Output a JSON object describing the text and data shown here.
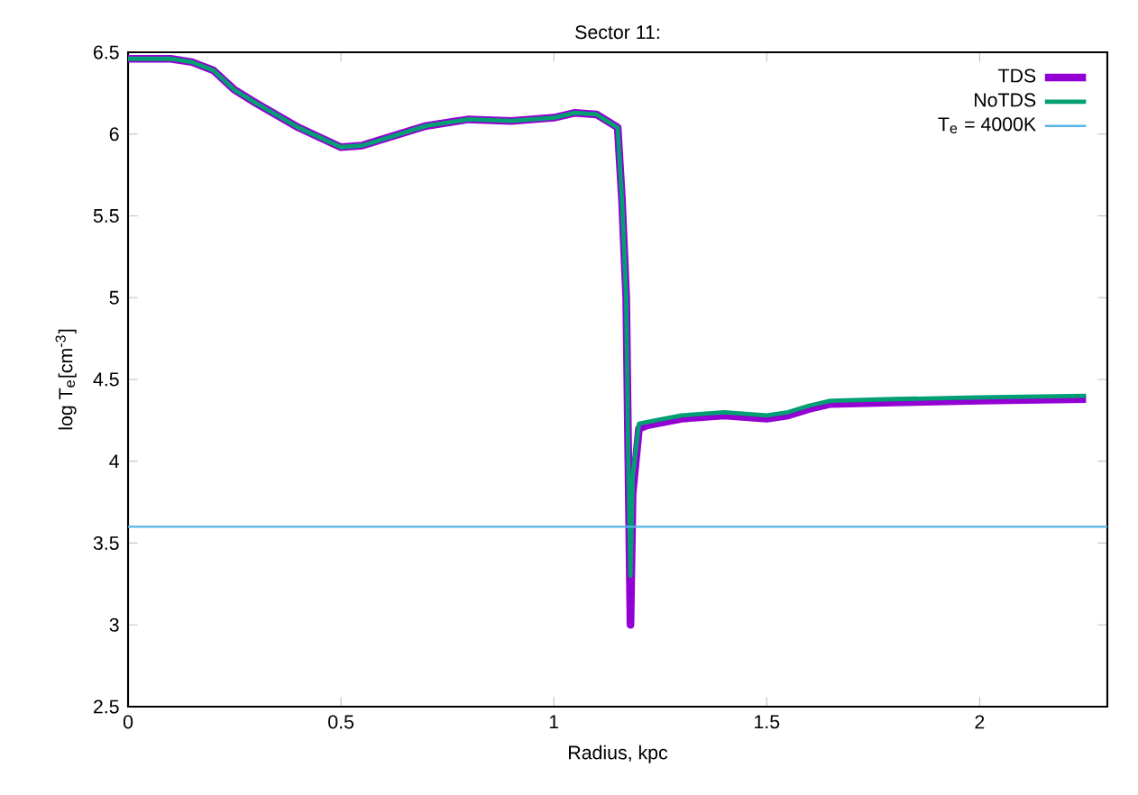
{
  "chart_data": {
    "type": "line",
    "title": "Sector 11:",
    "xlabel": "Radius, kpc",
    "ylabel": "log T$_{e}$[cm$^{-3}$]",
    "xlim": [
      0,
      2.3
    ],
    "ylim": [
      2.5,
      6.5
    ],
    "xticks": [
      0,
      0.5,
      1,
      1.5,
      2
    ],
    "yticks": [
      2.5,
      3,
      3.5,
      4,
      4.5,
      5,
      5.5,
      6,
      6.5
    ],
    "grid": false,
    "legend": "top right",
    "marker": "none",
    "line_style": "solid",
    "series": [
      {
        "name": "TDS",
        "color": "#9400d3",
        "x": [
          0,
          0.1,
          0.15,
          0.2,
          0.25,
          0.3,
          0.4,
          0.5,
          0.55,
          0.6,
          0.7,
          0.8,
          0.9,
          1.0,
          1.05,
          1.1,
          1.15,
          1.16,
          1.17,
          1.175,
          1.18,
          1.185,
          1.2,
          1.22,
          1.3,
          1.4,
          1.5,
          1.55,
          1.6,
          1.65,
          1.8,
          2.0,
          2.25
        ],
        "values": [
          6.46,
          6.46,
          6.44,
          6.39,
          6.27,
          6.19,
          6.04,
          5.92,
          5.93,
          5.97,
          6.05,
          6.09,
          6.08,
          6.1,
          6.13,
          6.12,
          6.04,
          5.6,
          5.0,
          4.0,
          3.0,
          3.8,
          4.2,
          4.22,
          4.26,
          4.28,
          4.26,
          4.28,
          4.32,
          4.35,
          4.36,
          4.37,
          4.38
        ]
      },
      {
        "name": "NoTDS",
        "color": "#009e73",
        "x": [
          0,
          0.1,
          0.15,
          0.2,
          0.25,
          0.3,
          0.4,
          0.5,
          0.55,
          0.6,
          0.7,
          0.8,
          0.9,
          1.0,
          1.05,
          1.1,
          1.15,
          1.16,
          1.17,
          1.175,
          1.18,
          1.185,
          1.2,
          1.22,
          1.3,
          1.4,
          1.5,
          1.55,
          1.6,
          1.65,
          1.8,
          2.0,
          2.25
        ],
        "values": [
          6.46,
          6.46,
          6.44,
          6.39,
          6.27,
          6.19,
          6.04,
          5.92,
          5.93,
          5.97,
          6.05,
          6.09,
          6.08,
          6.1,
          6.13,
          6.12,
          6.04,
          5.6,
          5.0,
          4.0,
          3.3,
          3.9,
          4.23,
          4.24,
          4.28,
          4.3,
          4.28,
          4.3,
          4.34,
          4.37,
          4.38,
          4.39,
          4.4
        ]
      },
      {
        "name": "T$_{e}$ = 4000K",
        "color": "#56b4e9",
        "x": [
          0,
          2.3
        ],
        "values": [
          3.6,
          3.6
        ]
      }
    ]
  }
}
